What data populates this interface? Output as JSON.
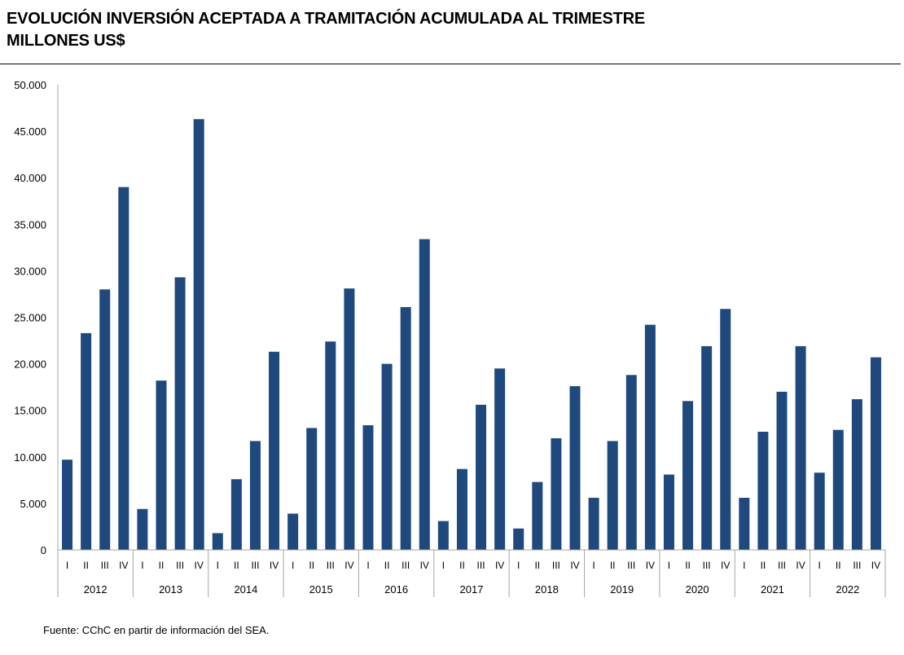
{
  "title_line1": "EVOLUCIÓN INVERSIÓN ACEPTADA A TRAMITACIÓN ACUMULADA AL TRIMESTRE",
  "title_line2": "MILLONES US$",
  "source": "Fuente: CChC en partir de información del SEA.",
  "chart_data": {
    "type": "bar",
    "title": "EVOLUCIÓN INVERSIÓN ACEPTADA A TRAMITACIÓN ACUMULADA AL TRIMESTRE",
    "ylabel": "MILLONES US$",
    "xlabel": "",
    "ylim": [
      0,
      50000
    ],
    "yticks": [
      0,
      5000,
      10000,
      15000,
      20000,
      25000,
      30000,
      35000,
      40000,
      45000,
      50000
    ],
    "ytick_labels": [
      "0",
      "5.000",
      "10.000",
      "15.000",
      "20.000",
      "25.000",
      "30.000",
      "35.000",
      "40.000",
      "45.000",
      "50.000"
    ],
    "grid": false,
    "bar_color": "#1F497D",
    "quarters": [
      "I",
      "II",
      "III",
      "IV"
    ],
    "years": [
      "2012",
      "2013",
      "2014",
      "2015",
      "2016",
      "2017",
      "2018",
      "2019",
      "2020",
      "2021",
      "2022"
    ],
    "values": [
      9700,
      23300,
      28000,
      39000,
      4400,
      18200,
      29300,
      46300,
      1800,
      7600,
      11700,
      21300,
      3900,
      13100,
      22400,
      28100,
      13400,
      20000,
      26100,
      33400,
      3100,
      8700,
      15600,
      19500,
      2300,
      7300,
      12000,
      17600,
      5600,
      11700,
      18800,
      24200,
      8100,
      16000,
      21900,
      25900,
      5600,
      12700,
      17000,
      21900,
      8300,
      12900,
      16200,
      20700
    ]
  }
}
